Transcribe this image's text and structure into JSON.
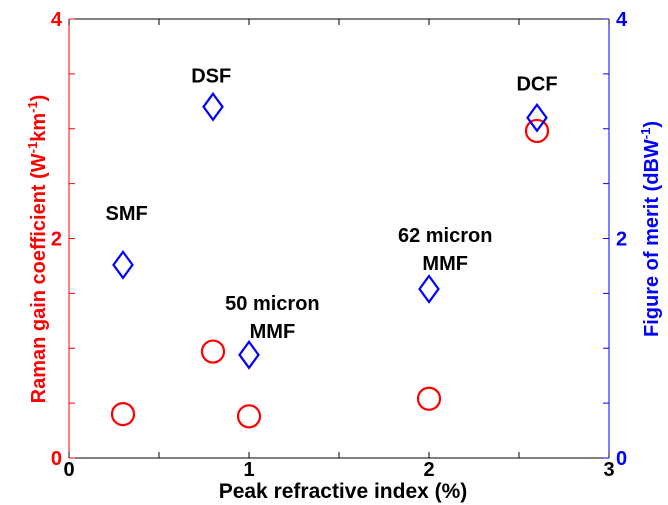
{
  "chart_data": {
    "type": "scatter",
    "xlabel": "Peak refractive index (%)",
    "ylabel_left": "Raman gain coefficient (W",
    "ylabel_left_sup1": "-1",
    "ylabel_left_mid": "km",
    "ylabel_left_sup2": "-1",
    "ylabel_left_end": ")",
    "ylabel_right": "Figure of merit (dBW",
    "ylabel_right_sup": "-1",
    "ylabel_right_end": ")",
    "xlim": [
      0,
      3
    ],
    "ylim_left": [
      0,
      4
    ],
    "ylim_right": [
      0,
      4
    ],
    "x_ticks": [
      "0",
      "1",
      "2",
      "3"
    ],
    "y_left_ticks": [
      "0",
      "2",
      "4"
    ],
    "y_right_ticks": [
      "0",
      "2",
      "4"
    ],
    "grid": false,
    "colors": {
      "left_axis": "#ff0000",
      "right_axis": "#0000ff",
      "circles": "#ff0000",
      "diamonds": "#0000ff"
    },
    "series": [
      {
        "marker": "circle",
        "axis": "left",
        "points": [
          {
            "x": 0.3,
            "y": 0.4
          },
          {
            "x": 0.8,
            "y": 0.97
          },
          {
            "x": 1.0,
            "y": 0.38
          },
          {
            "x": 2.0,
            "y": 0.54
          },
          {
            "x": 2.6,
            "y": 2.98
          }
        ]
      },
      {
        "marker": "diamond",
        "axis": "right",
        "points": [
          {
            "x": 0.3,
            "y": 1.76
          },
          {
            "x": 0.8,
            "y": 3.2
          },
          {
            "x": 1.0,
            "y": 0.94
          },
          {
            "x": 2.0,
            "y": 1.54
          },
          {
            "x": 2.6,
            "y": 3.1
          }
        ]
      }
    ],
    "annotations": [
      {
        "lines": [
          "DSF"
        ],
        "x": 0.79,
        "y": 3.42
      },
      {
        "lines": [
          "DCF"
        ],
        "x": 2.6,
        "y": 3.35
      },
      {
        "lines": [
          "SMF"
        ],
        "x": 0.32,
        "y": 2.17
      },
      {
        "lines": [
          "62 micron",
          "MMF"
        ],
        "x": 2.09,
        "y": 1.97
      },
      {
        "lines": [
          "50 micron",
          "MMF"
        ],
        "x": 1.13,
        "y": 1.35
      }
    ]
  }
}
